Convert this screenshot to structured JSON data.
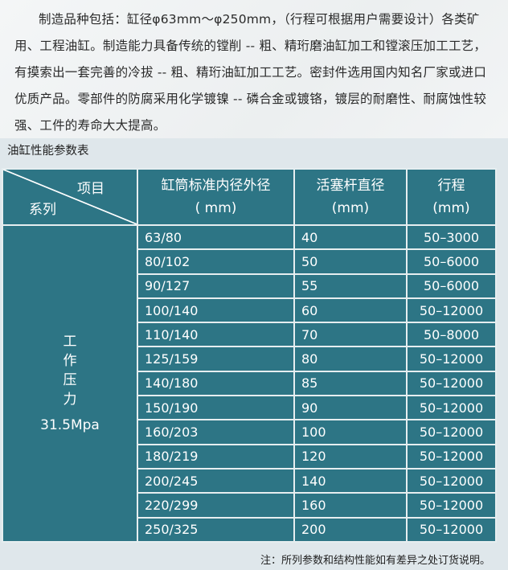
{
  "intro": "制造品种包括：缸径φ63mm～φ250mm，（行程可根据用户需要设计）各类矿用、工程油缸。制造能力具备传统的镗削 -- 粗、精珩磨油缸加工和镗滚压加工工艺，有摸索出一套完善的冷拔 -- 粗、精珩油缸加工工艺。密封件选用国内知名厂家或进口优质产品。零部件的防腐采用化学镀镍 -- 磷合金或镀铬，镀层的耐磨性、耐腐蚀性较强、工件的寿命大大提高。",
  "table_title": "油缸性能参数表",
  "header": {
    "item": "项目",
    "series": "系列",
    "col1": "缸筒标准内径外径",
    "col1_unit": "( mm)",
    "col2": "活塞杆直径",
    "col2_unit": "(mm)",
    "col3": "行程",
    "col3_unit": "(mm)"
  },
  "series_label": {
    "name": "工\n作\n压\n力",
    "value": "31.5Mpa"
  },
  "rows": [
    [
      "63/80",
      "40",
      "50–3000"
    ],
    [
      "80/102",
      "50",
      "50–6000"
    ],
    [
      "90/127",
      "55",
      "50–6000"
    ],
    [
      "100/140",
      "60",
      "50–12000"
    ],
    [
      "110/140",
      "70",
      "50–8000"
    ],
    [
      "125/159",
      "80",
      "50–12000"
    ],
    [
      "140/180",
      "85",
      "50–12000"
    ],
    [
      "150/190",
      "90",
      "50–12000"
    ],
    [
      "160/203",
      "100",
      "50–12000"
    ],
    [
      "180/219",
      "120",
      "50–12000"
    ],
    [
      "200/245",
      "140",
      "50–12000"
    ],
    [
      "220/299",
      "160",
      "50–12000"
    ],
    [
      "250/325",
      "200",
      "50–12000"
    ]
  ],
  "note": "注：所列参数和结构性能如有差异之处订货说明。"
}
